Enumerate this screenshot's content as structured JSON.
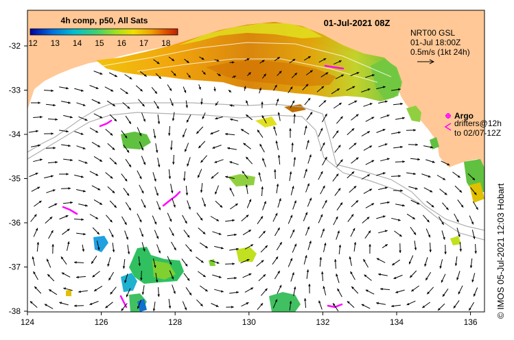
{
  "title": {
    "date": "01-Jul-2021 08Z"
  },
  "colorbar": {
    "label": "4h comp, p50, All Sats",
    "ticks": [
      "12",
      "13",
      "14",
      "15",
      "16",
      "17",
      "18"
    ],
    "colors": [
      "#0000a0",
      "#0060e0",
      "#00c0e0",
      "#40d080",
      "#a0e020",
      "#f0e000",
      "#f0a000",
      "#e05000",
      "#c02000"
    ]
  },
  "model": {
    "line1": "NRT00 GSL",
    "line2": "01-Jul 18:00Z",
    "line3": "0.5m/s (1kt 24h)"
  },
  "legend": {
    "argo_label": "Argo",
    "drifters_line1": "drifters@12h",
    "drifters_line2": "to 02/07-12Z",
    "argo_color": "#ff00ff"
  },
  "axes": {
    "x_ticks": [
      "124",
      "126",
      "128",
      "130",
      "132",
      "134",
      "136"
    ],
    "y_ticks": [
      "-32",
      "-33",
      "-34",
      "-35",
      "-36",
      "-37",
      "-38"
    ]
  },
  "credit": "© IMOS 05-Jul-2021 12:03 Hobart",
  "colors": {
    "land": "#ffc896",
    "ocean": "#ffffff"
  }
}
